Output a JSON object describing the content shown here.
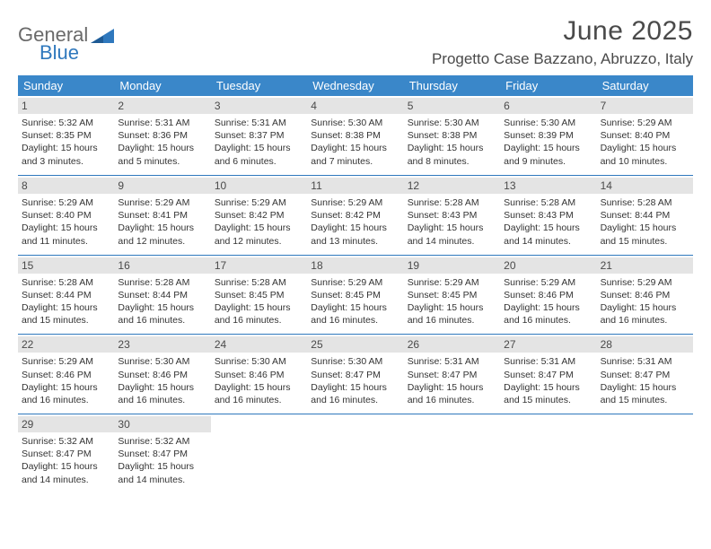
{
  "logo": {
    "text_general": "General",
    "text_blue": "Blue",
    "triangle_color": "#2f78bd"
  },
  "header": {
    "month_title": "June 2025",
    "location": "Progetto Case Bazzano, Abruzzo, Italy"
  },
  "calendar": {
    "header_bg": "#3a87c9",
    "header_text_color": "#ffffff",
    "divider_color": "#2f78bd",
    "daynum_bg": "#e4e4e4",
    "day_headers": [
      "Sunday",
      "Monday",
      "Tuesday",
      "Wednesday",
      "Thursday",
      "Friday",
      "Saturday"
    ],
    "weeks": [
      [
        {
          "day": "1",
          "sunrise": "Sunrise: 5:32 AM",
          "sunset": "Sunset: 8:35 PM",
          "daylight": "Daylight: 15 hours and 3 minutes."
        },
        {
          "day": "2",
          "sunrise": "Sunrise: 5:31 AM",
          "sunset": "Sunset: 8:36 PM",
          "daylight": "Daylight: 15 hours and 5 minutes."
        },
        {
          "day": "3",
          "sunrise": "Sunrise: 5:31 AM",
          "sunset": "Sunset: 8:37 PM",
          "daylight": "Daylight: 15 hours and 6 minutes."
        },
        {
          "day": "4",
          "sunrise": "Sunrise: 5:30 AM",
          "sunset": "Sunset: 8:38 PM",
          "daylight": "Daylight: 15 hours and 7 minutes."
        },
        {
          "day": "5",
          "sunrise": "Sunrise: 5:30 AM",
          "sunset": "Sunset: 8:38 PM",
          "daylight": "Daylight: 15 hours and 8 minutes."
        },
        {
          "day": "6",
          "sunrise": "Sunrise: 5:30 AM",
          "sunset": "Sunset: 8:39 PM",
          "daylight": "Daylight: 15 hours and 9 minutes."
        },
        {
          "day": "7",
          "sunrise": "Sunrise: 5:29 AM",
          "sunset": "Sunset: 8:40 PM",
          "daylight": "Daylight: 15 hours and 10 minutes."
        }
      ],
      [
        {
          "day": "8",
          "sunrise": "Sunrise: 5:29 AM",
          "sunset": "Sunset: 8:40 PM",
          "daylight": "Daylight: 15 hours and 11 minutes."
        },
        {
          "day": "9",
          "sunrise": "Sunrise: 5:29 AM",
          "sunset": "Sunset: 8:41 PM",
          "daylight": "Daylight: 15 hours and 12 minutes."
        },
        {
          "day": "10",
          "sunrise": "Sunrise: 5:29 AM",
          "sunset": "Sunset: 8:42 PM",
          "daylight": "Daylight: 15 hours and 12 minutes."
        },
        {
          "day": "11",
          "sunrise": "Sunrise: 5:29 AM",
          "sunset": "Sunset: 8:42 PM",
          "daylight": "Daylight: 15 hours and 13 minutes."
        },
        {
          "day": "12",
          "sunrise": "Sunrise: 5:28 AM",
          "sunset": "Sunset: 8:43 PM",
          "daylight": "Daylight: 15 hours and 14 minutes."
        },
        {
          "day": "13",
          "sunrise": "Sunrise: 5:28 AM",
          "sunset": "Sunset: 8:43 PM",
          "daylight": "Daylight: 15 hours and 14 minutes."
        },
        {
          "day": "14",
          "sunrise": "Sunrise: 5:28 AM",
          "sunset": "Sunset: 8:44 PM",
          "daylight": "Daylight: 15 hours and 15 minutes."
        }
      ],
      [
        {
          "day": "15",
          "sunrise": "Sunrise: 5:28 AM",
          "sunset": "Sunset: 8:44 PM",
          "daylight": "Daylight: 15 hours and 15 minutes."
        },
        {
          "day": "16",
          "sunrise": "Sunrise: 5:28 AM",
          "sunset": "Sunset: 8:44 PM",
          "daylight": "Daylight: 15 hours and 16 minutes."
        },
        {
          "day": "17",
          "sunrise": "Sunrise: 5:28 AM",
          "sunset": "Sunset: 8:45 PM",
          "daylight": "Daylight: 15 hours and 16 minutes."
        },
        {
          "day": "18",
          "sunrise": "Sunrise: 5:29 AM",
          "sunset": "Sunset: 8:45 PM",
          "daylight": "Daylight: 15 hours and 16 minutes."
        },
        {
          "day": "19",
          "sunrise": "Sunrise: 5:29 AM",
          "sunset": "Sunset: 8:45 PM",
          "daylight": "Daylight: 15 hours and 16 minutes."
        },
        {
          "day": "20",
          "sunrise": "Sunrise: 5:29 AM",
          "sunset": "Sunset: 8:46 PM",
          "daylight": "Daylight: 15 hours and 16 minutes."
        },
        {
          "day": "21",
          "sunrise": "Sunrise: 5:29 AM",
          "sunset": "Sunset: 8:46 PM",
          "daylight": "Daylight: 15 hours and 16 minutes."
        }
      ],
      [
        {
          "day": "22",
          "sunrise": "Sunrise: 5:29 AM",
          "sunset": "Sunset: 8:46 PM",
          "daylight": "Daylight: 15 hours and 16 minutes."
        },
        {
          "day": "23",
          "sunrise": "Sunrise: 5:30 AM",
          "sunset": "Sunset: 8:46 PM",
          "daylight": "Daylight: 15 hours and 16 minutes."
        },
        {
          "day": "24",
          "sunrise": "Sunrise: 5:30 AM",
          "sunset": "Sunset: 8:46 PM",
          "daylight": "Daylight: 15 hours and 16 minutes."
        },
        {
          "day": "25",
          "sunrise": "Sunrise: 5:30 AM",
          "sunset": "Sunset: 8:47 PM",
          "daylight": "Daylight: 15 hours and 16 minutes."
        },
        {
          "day": "26",
          "sunrise": "Sunrise: 5:31 AM",
          "sunset": "Sunset: 8:47 PM",
          "daylight": "Daylight: 15 hours and 16 minutes."
        },
        {
          "day": "27",
          "sunrise": "Sunrise: 5:31 AM",
          "sunset": "Sunset: 8:47 PM",
          "daylight": "Daylight: 15 hours and 15 minutes."
        },
        {
          "day": "28",
          "sunrise": "Sunrise: 5:31 AM",
          "sunset": "Sunset: 8:47 PM",
          "daylight": "Daylight: 15 hours and 15 minutes."
        }
      ],
      [
        {
          "day": "29",
          "sunrise": "Sunrise: 5:32 AM",
          "sunset": "Sunset: 8:47 PM",
          "daylight": "Daylight: 15 hours and 14 minutes."
        },
        {
          "day": "30",
          "sunrise": "Sunrise: 5:32 AM",
          "sunset": "Sunset: 8:47 PM",
          "daylight": "Daylight: 15 hours and 14 minutes."
        },
        null,
        null,
        null,
        null,
        null
      ]
    ]
  }
}
